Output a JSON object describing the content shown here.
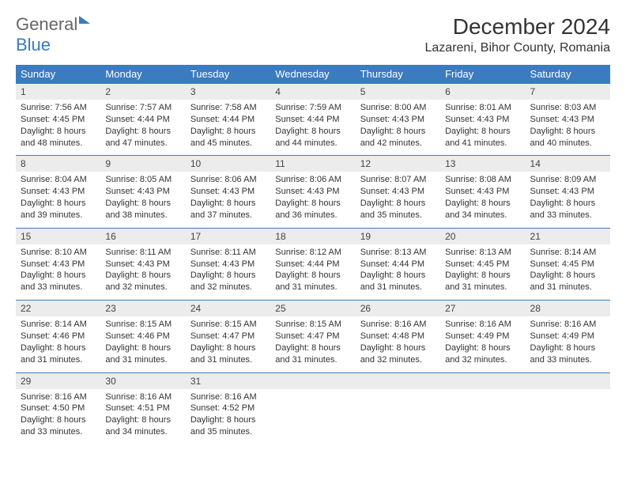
{
  "logo": {
    "part1": "General",
    "part2": "Blue"
  },
  "title": "December 2024",
  "subtitle": "Lazareni, Bihor County, Romania",
  "colors": {
    "header_bg": "#3b7bbf",
    "header_text": "#ffffff",
    "daynum_bg": "#ececec",
    "row_divider": "#3b7bbf",
    "background": "#ffffff",
    "text": "#333333"
  },
  "weekdays": [
    "Sunday",
    "Monday",
    "Tuesday",
    "Wednesday",
    "Thursday",
    "Friday",
    "Saturday"
  ],
  "weeks": [
    [
      {
        "n": "1",
        "sr": "7:56 AM",
        "ss": "4:45 PM",
        "dl": "8 hours and 48 minutes."
      },
      {
        "n": "2",
        "sr": "7:57 AM",
        "ss": "4:44 PM",
        "dl": "8 hours and 47 minutes."
      },
      {
        "n": "3",
        "sr": "7:58 AM",
        "ss": "4:44 PM",
        "dl": "8 hours and 45 minutes."
      },
      {
        "n": "4",
        "sr": "7:59 AM",
        "ss": "4:44 PM",
        "dl": "8 hours and 44 minutes."
      },
      {
        "n": "5",
        "sr": "8:00 AM",
        "ss": "4:43 PM",
        "dl": "8 hours and 42 minutes."
      },
      {
        "n": "6",
        "sr": "8:01 AM",
        "ss": "4:43 PM",
        "dl": "8 hours and 41 minutes."
      },
      {
        "n": "7",
        "sr": "8:03 AM",
        "ss": "4:43 PM",
        "dl": "8 hours and 40 minutes."
      }
    ],
    [
      {
        "n": "8",
        "sr": "8:04 AM",
        "ss": "4:43 PM",
        "dl": "8 hours and 39 minutes."
      },
      {
        "n": "9",
        "sr": "8:05 AM",
        "ss": "4:43 PM",
        "dl": "8 hours and 38 minutes."
      },
      {
        "n": "10",
        "sr": "8:06 AM",
        "ss": "4:43 PM",
        "dl": "8 hours and 37 minutes."
      },
      {
        "n": "11",
        "sr": "8:06 AM",
        "ss": "4:43 PM",
        "dl": "8 hours and 36 minutes."
      },
      {
        "n": "12",
        "sr": "8:07 AM",
        "ss": "4:43 PM",
        "dl": "8 hours and 35 minutes."
      },
      {
        "n": "13",
        "sr": "8:08 AM",
        "ss": "4:43 PM",
        "dl": "8 hours and 34 minutes."
      },
      {
        "n": "14",
        "sr": "8:09 AM",
        "ss": "4:43 PM",
        "dl": "8 hours and 33 minutes."
      }
    ],
    [
      {
        "n": "15",
        "sr": "8:10 AM",
        "ss": "4:43 PM",
        "dl": "8 hours and 33 minutes."
      },
      {
        "n": "16",
        "sr": "8:11 AM",
        "ss": "4:43 PM",
        "dl": "8 hours and 32 minutes."
      },
      {
        "n": "17",
        "sr": "8:11 AM",
        "ss": "4:43 PM",
        "dl": "8 hours and 32 minutes."
      },
      {
        "n": "18",
        "sr": "8:12 AM",
        "ss": "4:44 PM",
        "dl": "8 hours and 31 minutes."
      },
      {
        "n": "19",
        "sr": "8:13 AM",
        "ss": "4:44 PM",
        "dl": "8 hours and 31 minutes."
      },
      {
        "n": "20",
        "sr": "8:13 AM",
        "ss": "4:45 PM",
        "dl": "8 hours and 31 minutes."
      },
      {
        "n": "21",
        "sr": "8:14 AM",
        "ss": "4:45 PM",
        "dl": "8 hours and 31 minutes."
      }
    ],
    [
      {
        "n": "22",
        "sr": "8:14 AM",
        "ss": "4:46 PM",
        "dl": "8 hours and 31 minutes."
      },
      {
        "n": "23",
        "sr": "8:15 AM",
        "ss": "4:46 PM",
        "dl": "8 hours and 31 minutes."
      },
      {
        "n": "24",
        "sr": "8:15 AM",
        "ss": "4:47 PM",
        "dl": "8 hours and 31 minutes."
      },
      {
        "n": "25",
        "sr": "8:15 AM",
        "ss": "4:47 PM",
        "dl": "8 hours and 31 minutes."
      },
      {
        "n": "26",
        "sr": "8:16 AM",
        "ss": "4:48 PM",
        "dl": "8 hours and 32 minutes."
      },
      {
        "n": "27",
        "sr": "8:16 AM",
        "ss": "4:49 PM",
        "dl": "8 hours and 32 minutes."
      },
      {
        "n": "28",
        "sr": "8:16 AM",
        "ss": "4:49 PM",
        "dl": "8 hours and 33 minutes."
      }
    ],
    [
      {
        "n": "29",
        "sr": "8:16 AM",
        "ss": "4:50 PM",
        "dl": "8 hours and 33 minutes."
      },
      {
        "n": "30",
        "sr": "8:16 AM",
        "ss": "4:51 PM",
        "dl": "8 hours and 34 minutes."
      },
      {
        "n": "31",
        "sr": "8:16 AM",
        "ss": "4:52 PM",
        "dl": "8 hours and 35 minutes."
      },
      null,
      null,
      null,
      null
    ]
  ],
  "labels": {
    "sunrise": "Sunrise:",
    "sunset": "Sunset:",
    "daylight": "Daylight:"
  }
}
